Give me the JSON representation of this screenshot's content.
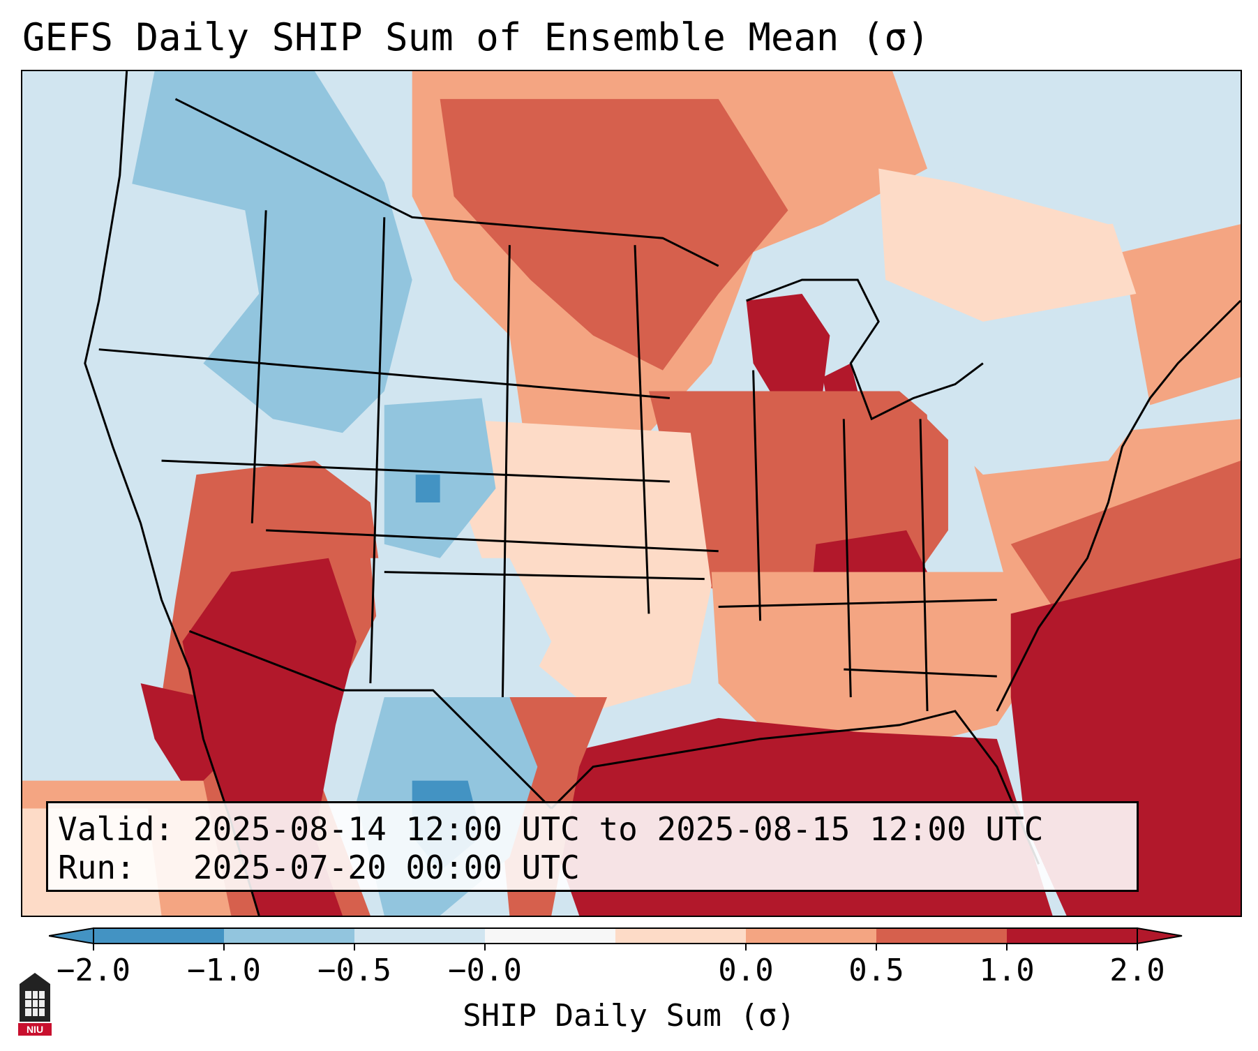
{
  "title": "GEFS Daily SHIP Sum of Ensemble Mean (σ)",
  "info": {
    "valid_label": "Valid:",
    "valid_value": "2025-08-14 12:00 UTC to 2025-08-15 12:00 UTC",
    "run_label": "Run:",
    "run_value": "2025-07-20 00:00 UTC"
  },
  "colorbar": {
    "label": "SHIP Daily Sum (σ)",
    "ticks": [
      "−2.0",
      "−1.0",
      "−0.5",
      "−0.0",
      "0.0",
      "0.5",
      "1.0",
      "2.0"
    ],
    "colors": [
      "#4393c3",
      "#92c5de",
      "#d1e5f0",
      "#f7f7f7",
      "#fddbc7",
      "#f4a582",
      "#d6604d",
      "#b2182b"
    ],
    "extend": "both"
  },
  "legend_colors": {
    "deep_red": "#b2182b",
    "red": "#d6604d",
    "salmon": "#f4a582",
    "peach": "#fddbc7",
    "white": "#f7f7f7",
    "light_blue": "#d1e5f0",
    "blue": "#92c5de",
    "deep_blue": "#4393c3"
  },
  "logo": {
    "icon": "niu-logo-icon",
    "text": "NIU"
  }
}
